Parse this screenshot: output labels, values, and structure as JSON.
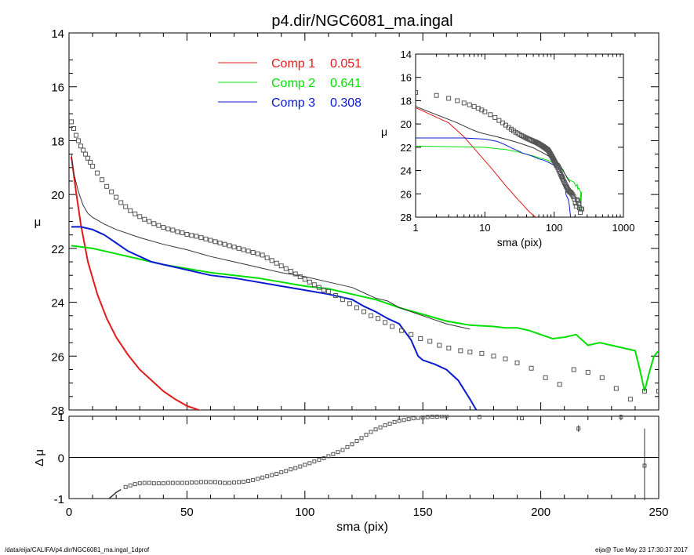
{
  "chart_data": {
    "type": "line",
    "title": "p4.dir/NGC6081_ma.ingal",
    "xlabel": "sma (pix)",
    "ylabel": "μ",
    "xlim": [
      0,
      250
    ],
    "ylim": [
      28,
      14
    ],
    "y_inverted": true,
    "xticks": [
      0,
      50,
      100,
      150,
      200,
      250
    ],
    "yticks": [
      14,
      16,
      18,
      20,
      22,
      24,
      26,
      28
    ],
    "legend": {
      "placement": "top-center",
      "entries": [
        {
          "label": "Comp 1",
          "value": "0.051",
          "color": "#e41a1a"
        },
        {
          "label": "Comp 2",
          "value": "0.641",
          "color": "#00e000"
        },
        {
          "label": "Comp 3",
          "value": "0.308",
          "color": "#0a1ad0"
        }
      ]
    },
    "series": [
      {
        "name": "Comp 1",
        "color": "#e41a1a",
        "style": "line",
        "x": [
          1,
          3,
          5,
          8,
          12,
          16,
          20,
          25,
          30,
          35,
          40,
          45,
          50,
          55,
          57
        ],
        "y": [
          18.6,
          19.9,
          21.1,
          22.5,
          23.7,
          24.6,
          25.3,
          25.95,
          26.5,
          26.9,
          27.3,
          27.6,
          27.85,
          28.0,
          28.05
        ]
      },
      {
        "name": "Comp 2",
        "color": "#00e000",
        "style": "line",
        "x": [
          1,
          10,
          20,
          30,
          40,
          50,
          60,
          70,
          80,
          90,
          100,
          110,
          120,
          130,
          140,
          150,
          160,
          170,
          180,
          185,
          190,
          195,
          200,
          205,
          210,
          215,
          220,
          225,
          230,
          235,
          240,
          242,
          244,
          246,
          248,
          250
        ],
        "y": [
          21.9,
          22.0,
          22.2,
          22.4,
          22.6,
          22.75,
          22.9,
          23.0,
          23.1,
          23.25,
          23.4,
          23.5,
          23.7,
          23.9,
          24.2,
          24.45,
          24.7,
          24.85,
          24.9,
          24.95,
          24.95,
          25.05,
          25.2,
          25.35,
          25.3,
          25.2,
          25.6,
          25.5,
          25.6,
          25.7,
          25.8,
          26.5,
          27.3,
          26.6,
          26.0,
          25.8
        ]
      },
      {
        "name": "Comp 3",
        "color": "#0a1ad0",
        "style": "line",
        "x": [
          1,
          5,
          10,
          15,
          20,
          25,
          30,
          35,
          40,
          45,
          50,
          60,
          70,
          80,
          90,
          100,
          110,
          120,
          125,
          130,
          135,
          140,
          145,
          148,
          150,
          155,
          160,
          165,
          170,
          173
        ],
        "y": [
          21.2,
          21.2,
          21.3,
          21.5,
          21.8,
          22.1,
          22.3,
          22.5,
          22.6,
          22.7,
          22.8,
          23.0,
          23.1,
          23.25,
          23.4,
          23.55,
          23.7,
          23.9,
          24.15,
          24.35,
          24.6,
          24.8,
          25.4,
          26.0,
          26.15,
          26.3,
          26.5,
          26.9,
          27.6,
          28.05
        ]
      },
      {
        "name": "Total",
        "color": "#333333",
        "style": "line",
        "x": [
          1,
          2,
          4,
          6,
          8,
          10,
          15,
          20,
          30,
          40,
          50,
          60,
          70,
          80,
          90,
          100,
          110,
          120,
          125,
          130,
          135,
          140,
          145,
          150,
          160,
          170
        ],
        "y": [
          18.5,
          19.2,
          19.9,
          20.4,
          20.7,
          20.85,
          21.1,
          21.3,
          21.6,
          21.85,
          22.05,
          22.3,
          22.5,
          22.7,
          22.9,
          23.05,
          23.25,
          23.45,
          23.65,
          23.85,
          23.95,
          24.2,
          24.35,
          24.5,
          24.8,
          25.0
        ]
      },
      {
        "name": "Data",
        "color": "#555555",
        "style": "square",
        "x": [
          1,
          2,
          3,
          4,
          5,
          6,
          7,
          8,
          9,
          10,
          12,
          14,
          16,
          18,
          20,
          22,
          24,
          26,
          28,
          30,
          32,
          34,
          36,
          38,
          40,
          42,
          44,
          46,
          48,
          50,
          52,
          54,
          56,
          58,
          60,
          62,
          64,
          66,
          68,
          70,
          72,
          74,
          76,
          78,
          80,
          82,
          84,
          86,
          88,
          90,
          92,
          94,
          96,
          98,
          100,
          102,
          104,
          106,
          108,
          110,
          113,
          116,
          119,
          122,
          125,
          128,
          131,
          134,
          137,
          141,
          145,
          149,
          153,
          157,
          161,
          166,
          170,
          175,
          180,
          185,
          190,
          196,
          202,
          208,
          214,
          220,
          226,
          232,
          238,
          244,
          250
        ],
        "y": [
          17.3,
          17.55,
          17.8,
          18.0,
          18.2,
          18.35,
          18.5,
          18.65,
          18.8,
          18.95,
          19.2,
          19.45,
          19.7,
          19.9,
          20.1,
          20.3,
          20.45,
          20.6,
          20.72,
          20.82,
          20.92,
          21.0,
          21.08,
          21.15,
          21.22,
          21.28,
          21.32,
          21.38,
          21.42,
          21.48,
          21.52,
          21.55,
          21.6,
          21.65,
          21.7,
          21.75,
          21.8,
          21.85,
          21.9,
          21.95,
          22.0,
          22.05,
          22.1,
          22.15,
          22.2,
          22.25,
          22.35,
          22.45,
          22.55,
          22.65,
          22.75,
          22.85,
          22.95,
          23.05,
          23.15,
          23.25,
          23.35,
          23.45,
          23.55,
          23.6,
          23.75,
          23.9,
          24.05,
          24.2,
          24.35,
          24.5,
          24.6,
          24.75,
          24.9,
          25.05,
          25.2,
          25.35,
          25.45,
          25.6,
          25.7,
          25.8,
          25.85,
          25.9,
          26.0,
          26.1,
          26.25,
          26.45,
          26.8,
          27.05,
          26.5,
          26.6,
          26.8,
          27.2,
          27.6,
          27.3,
          27.3
        ]
      }
    ],
    "inset": {
      "xlabel": "sma (pix)",
      "ylabel": "μ",
      "xscale": "log",
      "xlim": [
        1,
        1000
      ],
      "ylim": [
        28,
        14
      ],
      "xticks": [
        1,
        10,
        100,
        1000
      ],
      "yticks": [
        14,
        16,
        18,
        20,
        22,
        24,
        26,
        28
      ]
    },
    "residual_panel": {
      "ylabel": "Δ μ",
      "ylim": [
        -1,
        1
      ],
      "yticks": [
        1,
        0,
        -1
      ],
      "x": [
        17,
        18,
        19,
        20,
        22,
        24,
        26,
        28,
        30,
        32,
        34,
        36,
        38,
        40,
        42,
        44,
        46,
        48,
        50,
        52,
        54,
        56,
        58,
        60,
        62,
        64,
        66,
        68,
        70,
        72,
        74,
        76,
        78,
        80,
        82,
        84,
        86,
        88,
        90,
        92,
        94,
        96,
        98,
        100,
        102,
        104,
        106,
        108,
        110,
        112,
        114,
        116,
        118,
        120,
        122,
        124,
        126,
        128,
        130,
        132,
        134,
        136,
        138,
        140,
        142,
        144,
        146,
        148,
        150,
        152,
        154,
        156,
        158,
        160,
        174,
        192,
        216,
        234,
        244
      ],
      "y": [
        -1.0,
        -0.95,
        -0.9,
        -0.85,
        -0.78,
        -0.72,
        -0.68,
        -0.65,
        -0.63,
        -0.62,
        -0.62,
        -0.63,
        -0.63,
        -0.63,
        -0.62,
        -0.62,
        -0.62,
        -0.62,
        -0.62,
        -0.61,
        -0.61,
        -0.6,
        -0.6,
        -0.6,
        -0.6,
        -0.61,
        -0.62,
        -0.62,
        -0.61,
        -0.6,
        -0.59,
        -0.57,
        -0.55,
        -0.52,
        -0.49,
        -0.46,
        -0.43,
        -0.4,
        -0.36,
        -0.33,
        -0.29,
        -0.26,
        -0.22,
        -0.18,
        -0.14,
        -0.1,
        -0.06,
        -0.02,
        0.03,
        0.08,
        0.13,
        0.18,
        0.25,
        0.32,
        0.4,
        0.47,
        0.55,
        0.62,
        0.68,
        0.73,
        0.78,
        0.82,
        0.86,
        0.89,
        0.91,
        0.93,
        0.95,
        0.96,
        0.97,
        0.98,
        0.99,
        0.99,
        1.0,
        1.0,
        0.98,
        0.95,
        0.7,
        0.98,
        -0.2
      ]
    },
    "footer_left": "/data/eija/CALIFA/p4.dir/NGC6081_ma.ingal_1dprof",
    "footer_right": "eija@  Tue May 23 17:30:37 2017"
  }
}
